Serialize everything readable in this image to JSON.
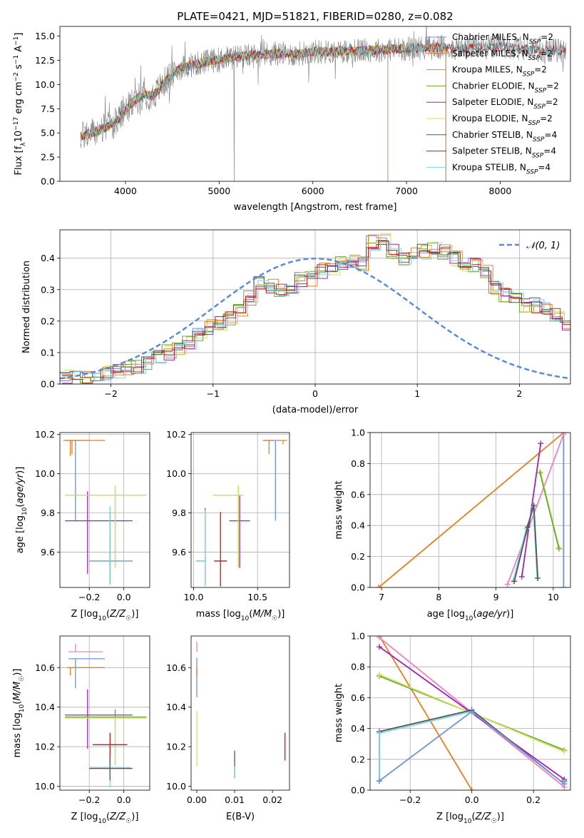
{
  "figure": {
    "title": "PLATE=0421, MJD=51821, FIBERID=0280, z=0.082"
  },
  "colors": {
    "Chabrier MILES": "#6f93d6",
    "Salpeter MILES": "#e67e22",
    "Kroupa MILES": "#e08a28",
    "Chabrier ELODIE": "#6aaa2a",
    "Salpeter ELODIE": "#9b27b0",
    "Kroupa ELODIE": "#d4e06a",
    "Chabrier STELIB": "#555555",
    "Salpeter STELIB": "#b71c1c",
    "Kroupa STELIB": "#80d8e0",
    "observed": "#808080",
    "kroupa_elodie_pink": "#ee82c0"
  },
  "chart_data": [
    {
      "id": "spectrum",
      "type": "line",
      "title": "PLATE=0421, MJD=51821, FIBERID=0280, z=0.082",
      "xlabel": "wavelength [Angstrom, rest frame]",
      "ylabel_parts": [
        "Flux [f",
        "λ",
        "10",
        "−17",
        " erg cm",
        "−2",
        " s",
        "−1",
        " A",
        "−1",
        "]"
      ],
      "xlim": [
        3300,
        8750
      ],
      "ylim": [
        0,
        16
      ],
      "xticks": [
        "4000",
        "5000",
        "6000",
        "7000",
        "8000"
      ],
      "xtick_values": [
        4000,
        5000,
        6000,
        7000,
        8000
      ],
      "yticks": [
        "0.0",
        "2.5",
        "5.0",
        "7.5",
        "10.0",
        "12.5",
        "15.0"
      ],
      "ytick_values": [
        0,
        2.5,
        5,
        7.5,
        10,
        12.5,
        15
      ],
      "legend_placement": "top-right",
      "legend": [
        {
          "name": "Chabrier MILES",
          "N": "2"
        },
        {
          "name": "Salpeter MILES",
          "N": "2"
        },
        {
          "name": "Kroupa MILES",
          "N": "2"
        },
        {
          "name": "Chabrier ELODIE",
          "N": "2"
        },
        {
          "name": "Salpeter ELODIE",
          "N": "2"
        },
        {
          "name": "Kroupa ELODIE",
          "N": "2"
        },
        {
          "name": "Chabrier STELIB",
          "N": "4"
        },
        {
          "name": "Salpeter STELIB",
          "N": "4"
        },
        {
          "name": "Kroupa STELIB",
          "N": "4"
        }
      ],
      "continuum": {
        "x": [
          3520,
          3600,
          3700,
          3800,
          3900,
          4000,
          4100,
          4200,
          4300,
          4400,
          4500,
          4600,
          4800,
          5000,
          5200,
          5400,
          5600,
          5800,
          6000,
          6200,
          6400,
          6600,
          6800,
          7000,
          7200,
          7400,
          7600,
          7800,
          8000,
          8200,
          8400,
          8700
        ],
        "y": [
          4.6,
          4.9,
          5.2,
          5.6,
          6.1,
          7.3,
          8.4,
          9.0,
          8.8,
          10.1,
          11.0,
          11.8,
          12.2,
          12.6,
          12.9,
          13.0,
          13.2,
          13.1,
          13.4,
          13.4,
          13.5,
          13.5,
          13.6,
          13.7,
          13.8,
          13.8,
          13.7,
          13.8,
          13.9,
          13.7,
          13.6,
          13.5
        ]
      }
    },
    {
      "id": "residuals",
      "type": "bar",
      "xlabel": "(data-model)/error",
      "ylabel": "Normed distribution",
      "xlim": [
        -2.5,
        2.5
      ],
      "ylim": [
        0,
        0.49
      ],
      "xticks": [
        "−2",
        "−1",
        "0",
        "1",
        "2"
      ],
      "xtick_values": [
        -2,
        -1,
        0,
        1,
        2
      ],
      "yticks": [
        "0.0",
        "0.1",
        "0.2",
        "0.3",
        "0.4"
      ],
      "ytick_values": [
        0,
        0.1,
        0.2,
        0.3,
        0.4
      ],
      "legend_label": "𝒩(0, 1)",
      "legend_placement": "top-right",
      "bin_width": 0.1,
      "bin_start": -2.5,
      "base_hist": [
        0.022,
        0.024,
        0.027,
        0.031,
        0.036,
        0.042,
        0.05,
        0.058,
        0.066,
        0.082,
        0.1,
        0.115,
        0.13,
        0.155,
        0.18,
        0.19,
        0.205,
        0.23,
        0.275,
        0.325,
        0.31,
        0.3,
        0.31,
        0.33,
        0.335,
        0.36,
        0.37,
        0.38,
        0.39,
        0.38,
        0.45,
        0.46,
        0.42,
        0.4,
        0.415,
        0.42,
        0.43,
        0.42,
        0.4,
        0.37,
        0.38,
        0.36,
        0.31,
        0.285,
        0.27,
        0.25,
        0.25,
        0.24,
        0.22,
        0.18,
        0.155,
        0.135,
        0.13,
        0.11,
        0.095,
        0.095,
        0.082,
        0.07,
        0.062,
        0.056,
        0.05,
        0.045,
        0.04,
        0.035,
        0.03,
        0.028,
        0.025,
        0.023,
        0.021,
        0.019
      ],
      "series": [
        "Chabrier MILES",
        "Salpeter MILES",
        "Kroupa MILES",
        "Chabrier ELODIE",
        "Salpeter ELODIE",
        "Kroupa ELODIE",
        "Chabrier STELIB",
        "Salpeter STELIB",
        "Kroupa STELIB"
      ]
    },
    {
      "id": "age_vs_Z",
      "type": "scatter",
      "xlabel": "Z [log10(Z/Z☉)]",
      "ylabel": "age  [log10(age/yr)]",
      "xlim": [
        -0.37,
        0.15
      ],
      "ylim": [
        9.42,
        10.21
      ],
      "xticks": [
        "−0.2",
        "0.0"
      ],
      "xtick_values": [
        -0.2,
        0.0
      ],
      "yticks": [
        "9.6",
        "9.8",
        "10.0",
        "10.2"
      ],
      "ytick_values": [
        9.6,
        9.8,
        10.0,
        10.2
      ],
      "points": [
        {
          "series": "Chabrier MILES",
          "x": -0.28,
          "xerr": [
            0.07,
            0.03
          ],
          "y": 10.17,
          "yerr": [
            0.41,
            0.0
          ]
        },
        {
          "series": "Salpeter MILES",
          "x": -0.3,
          "xerr": [
            0.04,
            0.19
          ],
          "y": 10.17,
          "yerr": [
            0.07,
            0.0
          ]
        },
        {
          "series": "Kroupa MILES",
          "x": -0.31,
          "xerr": [
            0.02,
            0.12
          ],
          "y": 10.17,
          "yerr": [
            0.08,
            0.0
          ]
        },
        {
          "series": "Chabrier ELODIE",
          "x": -0.05,
          "xerr": [
            0.29,
            0.18
          ],
          "y": 9.89,
          "yerr": [
            0.37,
            0.05
          ]
        },
        {
          "series": "Salpeter ELODIE",
          "x": -0.21,
          "xerr": [
            0.13,
            0.26
          ],
          "y": 9.76,
          "yerr": [
            0.27,
            0.15
          ]
        },
        {
          "series": "Kroupa ELODIE",
          "x": -0.05,
          "xerr": [
            0.29,
            0.18
          ],
          "y": 9.89,
          "yerr": [
            0.37,
            0.05
          ]
        },
        {
          "series": "Chabrier STELIB",
          "x": -0.08,
          "xerr": [
            0.12,
            0.13
          ],
          "y": 9.555,
          "yerr": [
            0.12,
            0.13
          ]
        },
        {
          "series": "Salpeter STELIB",
          "x": -0.08,
          "xerr": [
            0.12,
            0.13
          ],
          "y": 9.555,
          "yerr": [
            0.1,
            0.25
          ]
        },
        {
          "series": "Kroupa STELIB",
          "x": -0.08,
          "xerr": [
            0.12,
            0.13
          ],
          "y": 9.555,
          "yerr": [
            0.12,
            0.28
          ]
        }
      ]
    },
    {
      "id": "age_vs_mass",
      "type": "scatter",
      "xlabel": "mass [log10(M/M☉)]",
      "ylabel": "",
      "xlim": [
        9.98,
        10.75
      ],
      "ylim": [
        9.42,
        10.21
      ],
      "xticks": [
        "10.0",
        "10.5"
      ],
      "xtick_values": [
        10.0,
        10.5
      ],
      "yticks": [
        "9.6",
        "9.8",
        "10.0",
        "10.2"
      ],
      "ytick_values": [
        9.6,
        9.8,
        10.0,
        10.2
      ],
      "points": [
        {
          "series": "Chabrier MILES",
          "x": 10.64,
          "xerr": [
            0.1,
            0.04
          ],
          "y": 10.17,
          "yerr": [
            0.41,
            0.0
          ]
        },
        {
          "series": "Salpeter MILES",
          "x": 10.59,
          "xerr": [
            0.04,
            0.04
          ],
          "y": 10.17,
          "yerr": [
            0.07,
            0.0
          ]
        },
        {
          "series": "Kroupa MILES",
          "x": 10.7,
          "xerr": [
            0.02,
            0.03
          ],
          "y": 10.17,
          "yerr": [
            0.02,
            0.0
          ]
        },
        {
          "series": "Chabrier ELODIE",
          "x": 10.35,
          "xerr": [
            0.2,
            0.04
          ],
          "y": 9.89,
          "yerr": [
            0.37,
            0.05
          ]
        },
        {
          "series": "Salpeter ELODIE",
          "x": 10.36,
          "xerr": [
            0.08,
            0.08
          ],
          "y": 9.76,
          "yerr": [
            0.24,
            0.13
          ]
        },
        {
          "series": "Kroupa ELODIE",
          "x": 10.35,
          "xerr": [
            0.2,
            0.04
          ],
          "y": 9.89,
          "yerr": [
            0.37,
            0.05
          ]
        },
        {
          "series": "Chabrier STELIB",
          "x": 10.09,
          "xerr": [
            0.07,
            0.01
          ],
          "y": 9.555,
          "yerr": [
            0.12,
            0.27
          ]
        },
        {
          "series": "Salpeter STELIB",
          "x": 10.21,
          "xerr": [
            0.05,
            0.05
          ],
          "y": 9.555,
          "yerr": [
            0.13,
            0.25
          ]
        },
        {
          "series": "Kroupa STELIB",
          "x": 10.09,
          "xerr": [
            0.07,
            0.01
          ],
          "y": 9.555,
          "yerr": [
            0.13,
            0.26
          ]
        }
      ]
    },
    {
      "id": "weight_vs_age",
      "type": "line",
      "xlabel": "age  [log10(age/yr)]",
      "ylabel": "mass weight",
      "xlim": [
        6.8,
        10.3
      ],
      "ylim": [
        0,
        1.0
      ],
      "xticks": [
        "7",
        "8",
        "9",
        "10"
      ],
      "xtick_values": [
        7,
        8,
        9,
        10
      ],
      "yticks": [
        "0.0",
        "0.2",
        "0.4",
        "0.6",
        "0.8",
        "1.0"
      ],
      "ytick_values": [
        0,
        0.2,
        0.4,
        0.6,
        0.8,
        1.0
      ],
      "series": [
        {
          "series": "Salpeter MILES",
          "x": [
            6.95,
            10.18
          ],
          "y": [
            0.0,
            1.0
          ]
        },
        {
          "series": "Chabrier MILES",
          "x": [
            10.18,
            10.18
          ],
          "y": [
            0.0,
            1.0
          ]
        },
        {
          "series": "Kroupa ELODIE pink",
          "x": [
            9.2,
            10.18
          ],
          "y": [
            0.02,
            0.99
          ]
        },
        {
          "series": "Salpeter ELODIE",
          "x": [
            9.45,
            9.78
          ],
          "y": [
            0.07,
            0.93
          ]
        },
        {
          "series": "Kroupa ELODIE",
          "x": [
            9.77,
            10.1
          ],
          "y": [
            0.75,
            0.26
          ]
        },
        {
          "series": "Chabrier ELODIE",
          "x": [
            9.77,
            10.1
          ],
          "y": [
            0.74,
            0.25
          ]
        },
        {
          "series": "Kroupa STELIB",
          "x": [
            9.3,
            9.53,
            9.65,
            9.72
          ],
          "y": [
            0.04,
            0.38,
            0.52,
            0.06
          ]
        },
        {
          "series": "Chabrier STELIB",
          "x": [
            9.32,
            9.55,
            9.66,
            9.73
          ],
          "y": [
            0.04,
            0.39,
            0.53,
            0.06
          ]
        }
      ]
    },
    {
      "id": "mass_vs_Z",
      "type": "scatter",
      "xlabel": "Z [log10(Z/Z☉)]",
      "ylabel": "mass [log10(M/M☉)]",
      "xlim": [
        -0.37,
        0.15
      ],
      "ylim": [
        9.98,
        10.76
      ],
      "xticks": [
        "−0.2",
        "0.0"
      ],
      "xtick_values": [
        -0.2,
        0.0
      ],
      "yticks": [
        "10.0",
        "10.2",
        "10.4",
        "10.6"
      ],
      "ytick_values": [
        10.0,
        10.2,
        10.4,
        10.6
      ],
      "points": [
        {
          "series": "Chabrier MILES",
          "x": -0.28,
          "xerr": [
            0.04,
            0.17
          ],
          "y": 10.645,
          "yerr": [
            0.15,
            0.0
          ]
        },
        {
          "series": "Salpeter MILES",
          "x": -0.31,
          "xerr": [
            0.02,
            0.2
          ],
          "y": 10.6,
          "yerr": [
            0.04,
            0.0
          ]
        },
        {
          "series": "Kroupa ELODIE pink",
          "x": -0.28,
          "xerr": [
            0.04,
            0.16
          ],
          "y": 10.68,
          "yerr": [
            0.0,
            0.04
          ]
        },
        {
          "series": "Salpeter ELODIE",
          "x": -0.21,
          "xerr": [
            0.13,
            0.26
          ],
          "y": 10.36,
          "yerr": [
            0.17,
            0.13
          ]
        },
        {
          "series": "Chabrier ELODIE",
          "x": -0.05,
          "xerr": [
            0.29,
            0.18
          ],
          "y": 10.35,
          "yerr": [
            0.24,
            0.04
          ]
        },
        {
          "series": "Kroupa ELODIE",
          "x": -0.05,
          "xerr": [
            0.29,
            0.18
          ],
          "y": 10.345,
          "yerr": [
            0.24,
            0.0
          ]
        },
        {
          "series": "Salpeter STELIB",
          "x": -0.08,
          "xerr": [
            0.1,
            0.1
          ],
          "y": 10.21,
          "yerr": [
            0.1,
            0.06
          ]
        },
        {
          "series": "Kroupa STELIB",
          "x": -0.08,
          "xerr": [
            0.12,
            0.12
          ],
          "y": 10.095,
          "yerr": [
            0.1,
            0.0
          ]
        },
        {
          "series": "Chabrier STELIB",
          "x": -0.08,
          "xerr": [
            0.12,
            0.13
          ],
          "y": 10.09,
          "yerr": [
            0.06,
            0.06
          ]
        }
      ]
    },
    {
      "id": "mass_vs_ebv",
      "type": "scatter",
      "xlabel": "E(B-V)",
      "ylabel": "",
      "xlim": [
        -0.0015,
        0.0245
      ],
      "ylim": [
        9.98,
        10.76
      ],
      "xticks": [
        "0.00",
        "0.01",
        "0.02"
      ],
      "xtick_values": [
        0.0,
        0.01,
        0.02
      ],
      "yticks": [
        "10.0",
        "10.2",
        "10.4",
        "10.6"
      ],
      "ytick_values": [
        10.0,
        10.2,
        10.4,
        10.6
      ],
      "points": [
        {
          "series": "Kroupa ELODIE pink",
          "x": 0.0,
          "y": 10.68,
          "yerr": [
            0.0,
            0.05
          ]
        },
        {
          "series": "Chabrier MILES",
          "x": 0.0,
          "y": 10.6,
          "yerr": [
            0.15,
            0.05
          ]
        },
        {
          "series": "Salpeter MILES",
          "x": 0.0,
          "y": 10.6,
          "yerr": [
            0.04,
            0.0
          ]
        },
        {
          "series": "Kroupa ELODIE",
          "x": 0.0,
          "y": 10.3,
          "yerr": [
            0.2,
            0.08
          ]
        },
        {
          "series": "Chabrier STELIB",
          "x": 0.01,
          "y": 10.1,
          "yerr": [
            0.06,
            0.08
          ]
        },
        {
          "series": "Kroupa STELIB",
          "x": 0.01,
          "y": 10.1,
          "yerr": [
            0.06,
            0.0
          ]
        },
        {
          "series": "Salpeter STELIB",
          "x": 0.0233,
          "y": 10.2,
          "yerr": [
            0.07,
            0.07
          ]
        }
      ]
    },
    {
      "id": "weight_vs_Z",
      "type": "line",
      "xlabel": "Z [log10(Z/Z☉)]",
      "ylabel": "mass weight",
      "xlim": [
        -0.33,
        0.32
      ],
      "ylim": [
        0,
        1.0
      ],
      "xticks": [
        "−0.2",
        "0.0",
        "0.2"
      ],
      "xtick_values": [
        -0.2,
        0.0,
        0.2
      ],
      "yticks": [
        "0.0",
        "0.2",
        "0.4",
        "0.6",
        "0.8",
        "1.0"
      ],
      "ytick_values": [
        0,
        0.2,
        0.4,
        0.6,
        0.8,
        1.0
      ],
      "series": [
        {
          "series": "Salpeter MILES",
          "x": [
            -0.3,
            0.0
          ],
          "y": [
            1.0,
            0.0
          ]
        },
        {
          "series": "Kroupa ELODIE pink",
          "x": [
            -0.3,
            0.3
          ],
          "y": [
            0.99,
            0.02
          ]
        },
        {
          "series": "Salpeter ELODIE",
          "x": [
            -0.3,
            0.3
          ],
          "y": [
            0.93,
            0.07
          ]
        },
        {
          "series": "Chabrier ELODIE",
          "x": [
            -0.3,
            0.3
          ],
          "y": [
            0.74,
            0.26
          ]
        },
        {
          "series": "Kroupa ELODIE",
          "x": [
            -0.3,
            0.3
          ],
          "y": [
            0.75,
            0.25
          ]
        },
        {
          "series": "Chabrier STELIB",
          "x": [
            -0.3,
            -0.3,
            0.0,
            0.3,
            0.3
          ],
          "y": [
            0.06,
            0.38,
            0.52,
            0.04,
            0.06
          ]
        },
        {
          "series": "Kroupa STELIB",
          "x": [
            -0.3,
            -0.3,
            0.0,
            0.3,
            0.3
          ],
          "y": [
            0.06,
            0.37,
            0.51,
            0.04,
            0.05
          ]
        },
        {
          "series": "Chabrier MILES",
          "x": [
            -0.3,
            0.0,
            0.3
          ],
          "y": [
            0.06,
            0.51,
            0.04
          ]
        }
      ]
    }
  ]
}
